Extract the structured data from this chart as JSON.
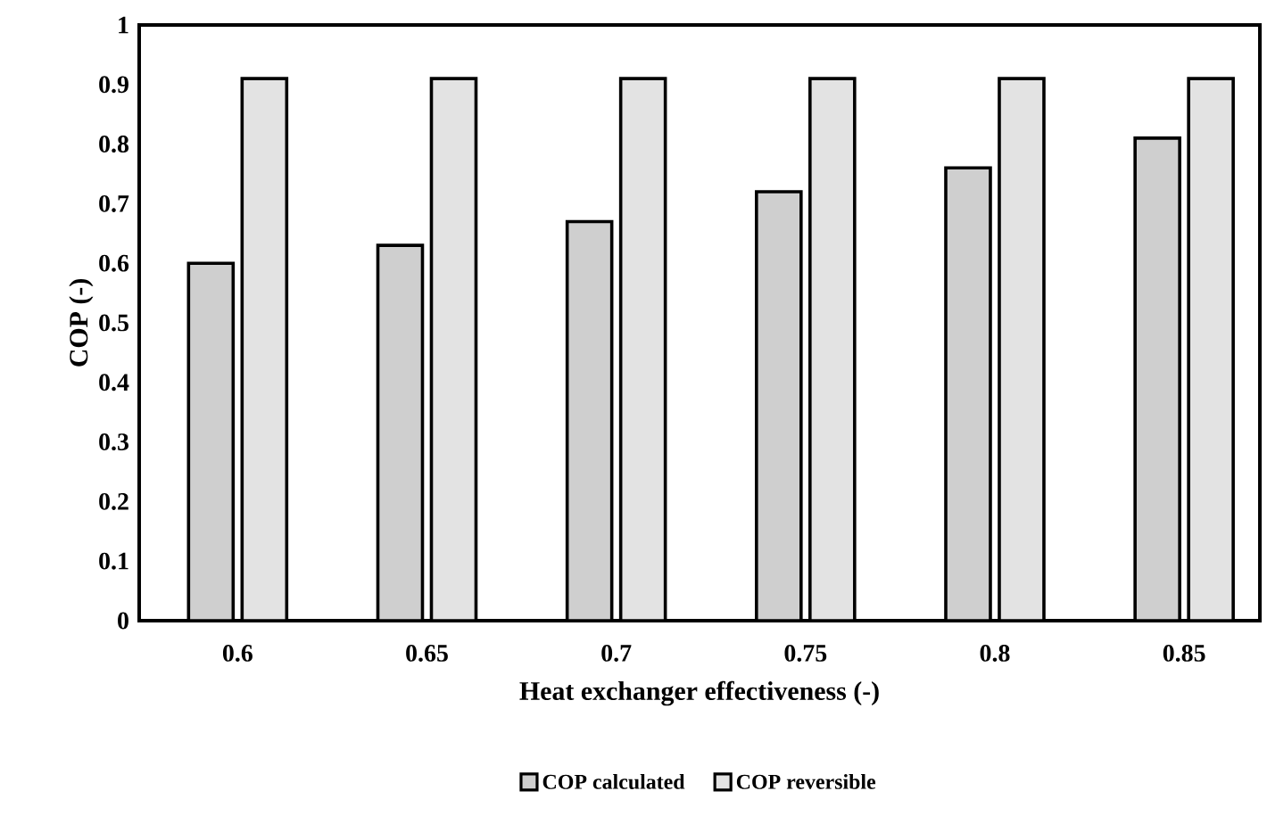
{
  "chart_data": {
    "type": "bar",
    "xlabel": "Heat exchanger effectiveness (-)",
    "ylabel": "COP (-)",
    "categories": [
      "0.6",
      "0.65",
      "0.7",
      "0.75",
      "0.8",
      "0.85"
    ],
    "series": [
      {
        "name": "COP calculated",
        "color": "#cfcfcf",
        "values": [
          0.6,
          0.63,
          0.67,
          0.72,
          0.76,
          0.81
        ]
      },
      {
        "name": "COP reversible",
        "color": "#e3e3e3",
        "values": [
          0.91,
          0.91,
          0.91,
          0.91,
          0.91,
          0.91
        ]
      }
    ],
    "ylim": [
      0,
      1
    ],
    "yticks": [
      0,
      0.1,
      0.2,
      0.3,
      0.4,
      0.5,
      0.6,
      0.7,
      0.8,
      0.9,
      1
    ],
    "grid": false,
    "legend": "bottom"
  }
}
